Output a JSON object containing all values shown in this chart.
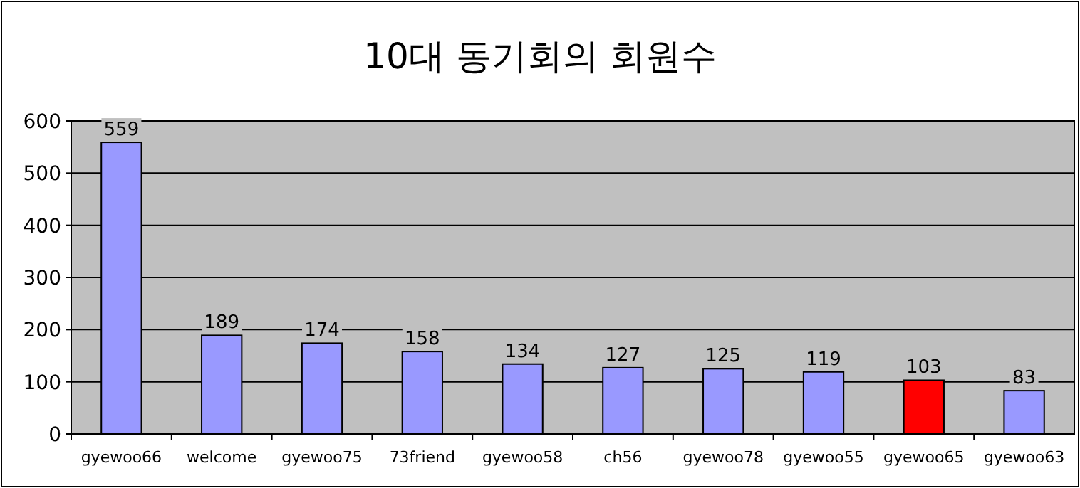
{
  "chart_data": {
    "type": "bar",
    "title": "10대 동기회의 회원수",
    "categories": [
      "gyewoo66",
      "welcome",
      "gyewoo75",
      "73friend",
      "gyewoo58",
      "ch56",
      "gyewoo78",
      "gyewoo55",
      "gyewoo65",
      "gyewoo63"
    ],
    "values": [
      559,
      189,
      174,
      158,
      134,
      127,
      125,
      119,
      103,
      83
    ],
    "colors": [
      "#9999ff",
      "#9999ff",
      "#9999ff",
      "#9999ff",
      "#9999ff",
      "#9999ff",
      "#9999ff",
      "#9999ff",
      "#ff0000",
      "#9999ff"
    ],
    "ylim": [
      0,
      600
    ],
    "yticks": [
      0,
      100,
      200,
      300,
      400,
      500,
      600
    ],
    "grid": "y",
    "data_labels": true
  }
}
